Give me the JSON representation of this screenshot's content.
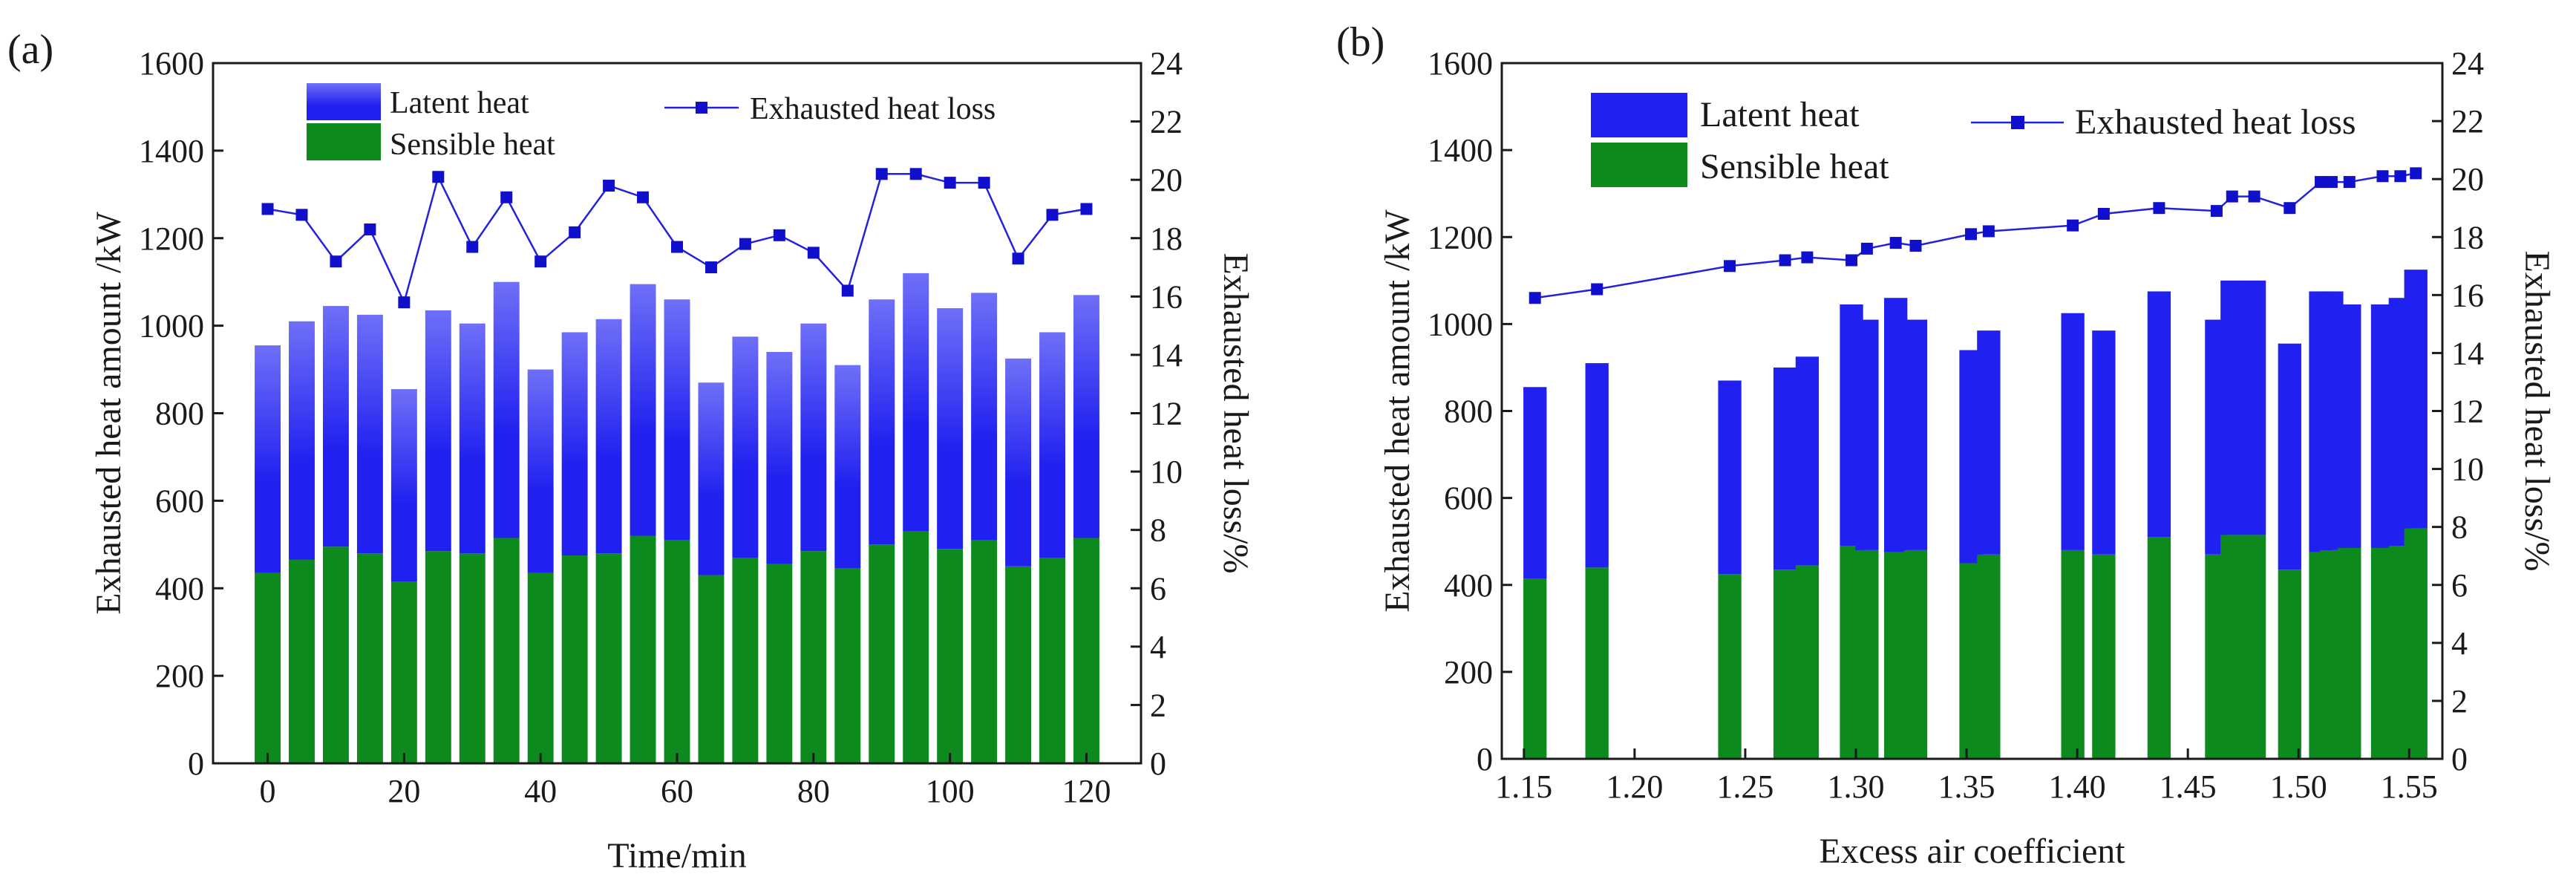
{
  "figure": {
    "panels": [
      "(a)",
      "(b)"
    ]
  },
  "colors": {
    "latent": "#2020f0",
    "latent_light": "#6f6ff8",
    "sensible": "#0c8a1e",
    "line": "#2222dd",
    "marker": "#1010cc",
    "axis": "#1a1a1a"
  },
  "chart_data": [
    {
      "panel_label": "(a)",
      "type": "bar",
      "stacked": true,
      "secondary_type": "line",
      "xlabel": "Time/min",
      "ylabel": "Exhausted heat amount /kW",
      "y2label": "Exhausted heat loss/%",
      "xlim": [
        -8,
        128
      ],
      "ylim": [
        0,
        1600
      ],
      "y2lim": [
        0,
        24
      ],
      "xticks": [
        0,
        20,
        40,
        60,
        80,
        100,
        120
      ],
      "yticks": [
        0,
        200,
        400,
        600,
        800,
        1000,
        1200,
        1400,
        1600
      ],
      "y2ticks": [
        0,
        2,
        4,
        6,
        8,
        10,
        12,
        14,
        16,
        18,
        20,
        22,
        24
      ],
      "bar_width": 3.8,
      "legend": {
        "latent": "Latent heat",
        "sensible": "Sensible heat",
        "line": "Exhausted heat loss"
      },
      "x": [
        0,
        5,
        10,
        15,
        20,
        25,
        30,
        35,
        40,
        45,
        50,
        55,
        60,
        65,
        70,
        75,
        80,
        85,
        90,
        95,
        100,
        105,
        110,
        115,
        120
      ],
      "series": [
        {
          "name": "Sensible heat",
          "values": [
            435,
            465,
            495,
            480,
            415,
            485,
            480,
            515,
            435,
            475,
            480,
            520,
            510,
            430,
            470,
            455,
            485,
            445,
            500,
            530,
            490,
            510,
            450,
            470,
            515
          ]
        },
        {
          "name": "Latent heat",
          "values": [
            520,
            545,
            550,
            545,
            440,
            550,
            525,
            585,
            465,
            510,
            535,
            575,
            550,
            440,
            505,
            485,
            520,
            465,
            560,
            590,
            550,
            565,
            475,
            515,
            555
          ]
        },
        {
          "name": "Exhausted heat loss",
          "values": [
            19.0,
            18.8,
            17.2,
            18.3,
            15.8,
            20.1,
            17.7,
            19.4,
            17.2,
            18.2,
            19.8,
            19.4,
            17.7,
            17.0,
            17.8,
            18.1,
            17.5,
            16.2,
            20.2,
            20.2,
            19.9,
            19.9,
            17.3,
            18.8,
            19.0
          ]
        }
      ]
    },
    {
      "panel_label": "(b)",
      "type": "bar",
      "stacked": true,
      "secondary_type": "line",
      "xlabel": "Excess air coefficient",
      "ylabel": "Exhausted heat amount /kW",
      "y2label": "Exhausted heat loss/%",
      "xlim": [
        1.14,
        1.565
      ],
      "ylim": [
        0,
        1600
      ],
      "y2lim": [
        0,
        24
      ],
      "xticks": [
        "1.15",
        "1.20",
        "1.25",
        "1.30",
        "1.35",
        "1.40",
        "1.45",
        "1.50",
        "1.55"
      ],
      "yticks": [
        0,
        200,
        400,
        600,
        800,
        1000,
        1200,
        1400,
        1600
      ],
      "y2ticks": [
        0,
        2,
        4,
        6,
        8,
        10,
        12,
        14,
        16,
        18,
        20,
        22,
        24
      ],
      "bar_width": 0.0105,
      "legend": {
        "latent": "Latent heat",
        "sensible": "Sensible heat",
        "line": "Exhausted heat loss"
      },
      "x": [
        1.155,
        1.183,
        1.243,
        1.268,
        1.278,
        1.298,
        1.305,
        1.318,
        1.327,
        1.352,
        1.36,
        1.398,
        1.412,
        1.437,
        1.463,
        1.47,
        1.48,
        1.496,
        1.51,
        1.515,
        1.523,
        1.538,
        1.546,
        1.553
      ],
      "series": [
        {
          "name": "Sensible heat",
          "values": [
            415,
            440,
            425,
            435,
            445,
            490,
            480,
            475,
            480,
            450,
            470,
            480,
            470,
            510,
            470,
            515,
            515,
            435,
            475,
            480,
            485,
            485,
            490,
            530
          ]
        },
        {
          "name": "Latent heat",
          "values": [
            440,
            470,
            445,
            465,
            480,
            555,
            530,
            585,
            530,
            490,
            515,
            545,
            515,
            565,
            540,
            585,
            585,
            520,
            600,
            595,
            560,
            560,
            570,
            595
          ]
        },
        {
          "name": "Exhausted heat loss",
          "values": [
            15.9,
            16.2,
            17.0,
            17.2,
            17.3,
            17.2,
            17.6,
            17.8,
            17.7,
            18.1,
            18.2,
            18.4,
            18.8,
            19.0,
            18.9,
            19.4,
            19.4,
            19.0,
            19.9,
            19.9,
            19.9,
            20.1,
            20.1,
            20.2
          ]
        }
      ]
    }
  ]
}
